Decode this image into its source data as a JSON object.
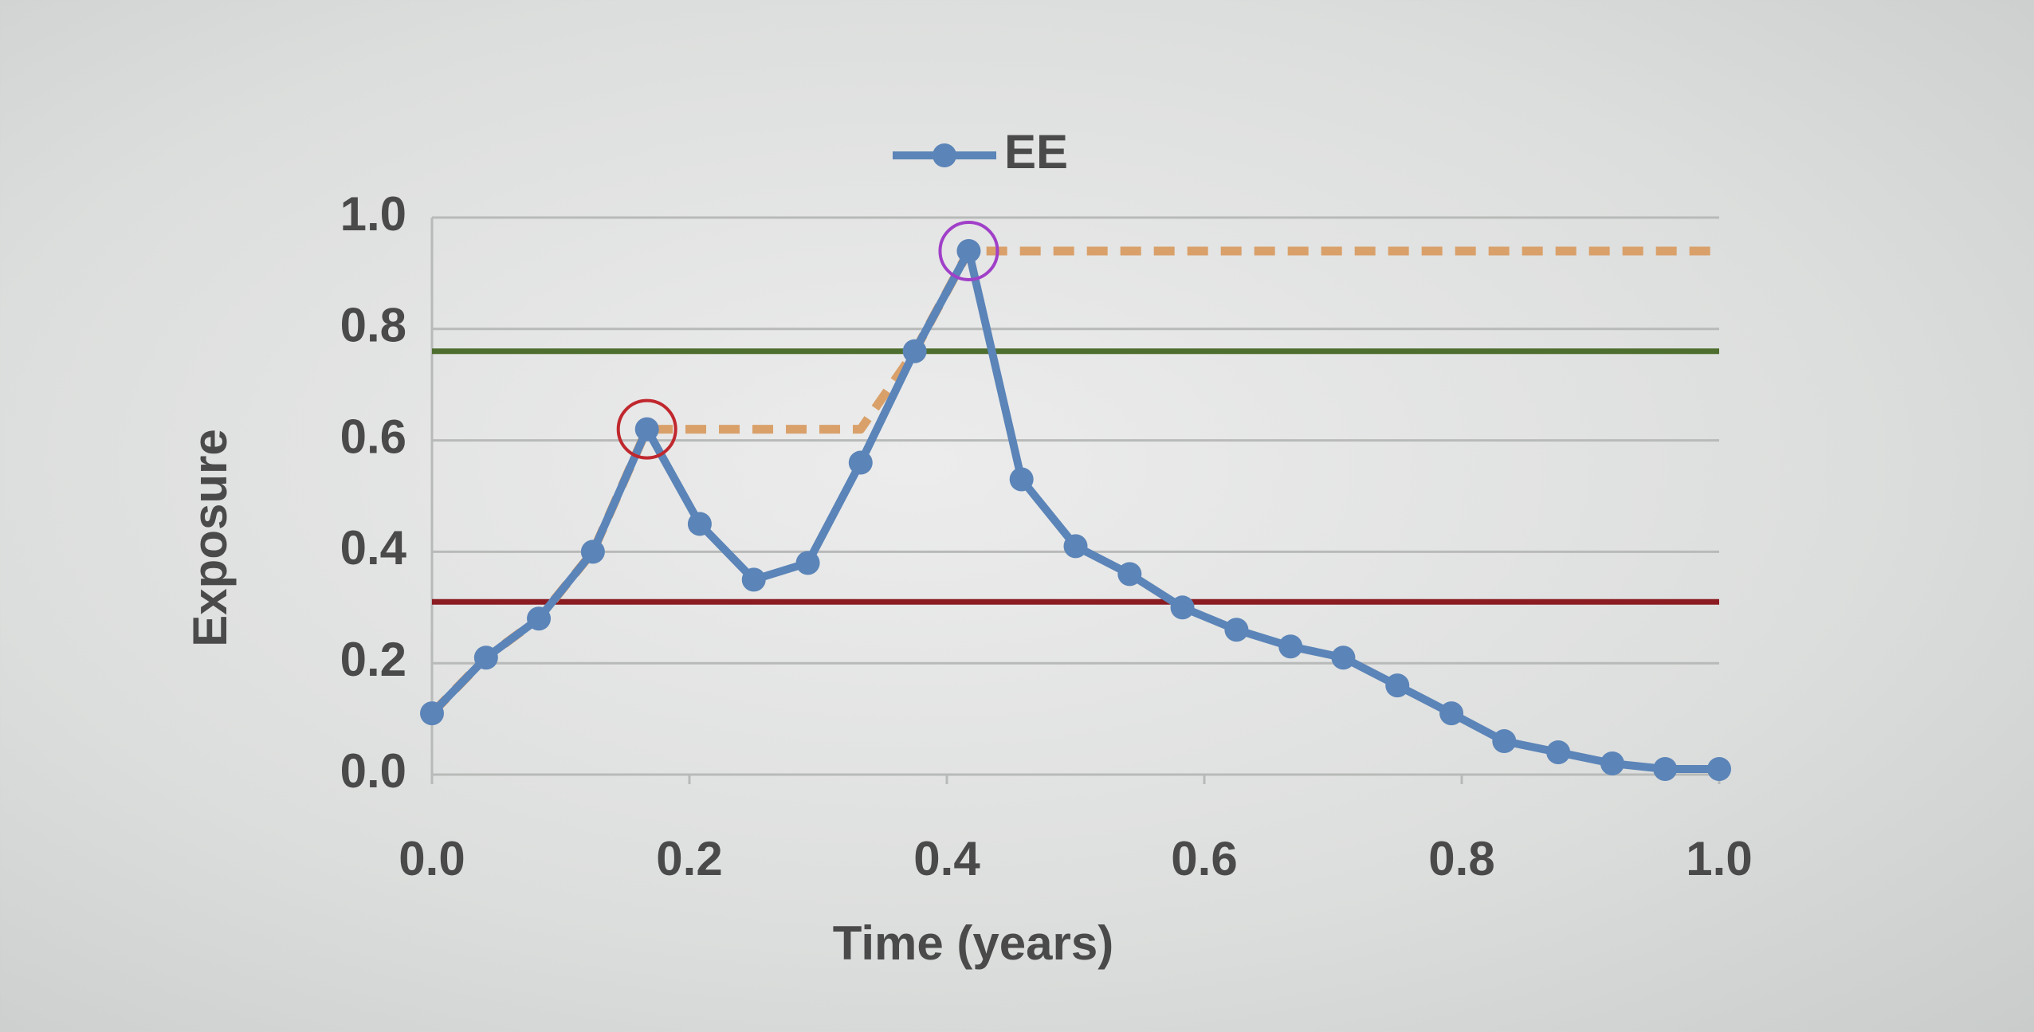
{
  "chart_data": {
    "type": "line",
    "xlabel": "Time (years)",
    "ylabel": "Exposure",
    "x": [
      0,
      0.042,
      0.083,
      0.125,
      0.167,
      0.208,
      0.25,
      0.292,
      0.333,
      0.375,
      0.417,
      0.458,
      0.5,
      0.542,
      0.583,
      0.625,
      0.667,
      0.708,
      0.75,
      0.792,
      0.833,
      0.875,
      0.917,
      0.958,
      1
    ],
    "series": [
      {
        "name": "EE",
        "color": "#5b84b8",
        "marker": true,
        "values": [
          0.11,
          0.21,
          0.28,
          0.4,
          0.62,
          0.45,
          0.35,
          0.38,
          0.56,
          0.76,
          0.94,
          0.53,
          0.41,
          0.36,
          0.3,
          0.26,
          0.23,
          0.21,
          0.16,
          0.11,
          0.06,
          0.04,
          0.02,
          0.01,
          0.01
        ]
      },
      {
        "color": "#d9a06a",
        "dashed": true,
        "marker": false,
        "values": [
          0.11,
          0.21,
          0.28,
          0.4,
          0.62,
          0.62,
          0.62,
          0.62,
          0.62,
          0.76,
          0.94,
          0.94,
          0.94,
          0.94,
          0.94,
          0.94,
          0.94,
          0.94,
          0.94,
          0.94,
          0.94,
          0.94,
          0.94,
          0.94,
          0.94
        ]
      }
    ],
    "hlines": [
      {
        "value": 0.76,
        "color": "#4d6e2f"
      },
      {
        "value": 0.31,
        "color": "#8a1c22"
      }
    ],
    "highlights": [
      {
        "index": 4,
        "color": "#c0282e"
      },
      {
        "index": 10,
        "color": "#a040c8"
      }
    ],
    "xlim": [
      0,
      1
    ],
    "ylim": [
      0,
      1
    ],
    "xticks": [
      {
        "value": 0,
        "label": "0.0"
      },
      {
        "value": 0.2,
        "label": "0.2"
      },
      {
        "value": 0.4,
        "label": "0.4"
      },
      {
        "value": 0.6,
        "label": "0.6"
      },
      {
        "value": 0.8,
        "label": "0.8"
      },
      {
        "value": 1,
        "label": "1.0"
      }
    ],
    "yticks": [
      {
        "value": 0,
        "label": "0.0"
      },
      {
        "value": 0.2,
        "label": "0.2"
      },
      {
        "value": 0.4,
        "label": "0.4"
      },
      {
        "value": 0.6,
        "label": "0.6"
      },
      {
        "value": 0.8,
        "label": "0.8"
      },
      {
        "value": 1,
        "label": "1.0"
      }
    ],
    "grid": true,
    "legend": "top"
  }
}
